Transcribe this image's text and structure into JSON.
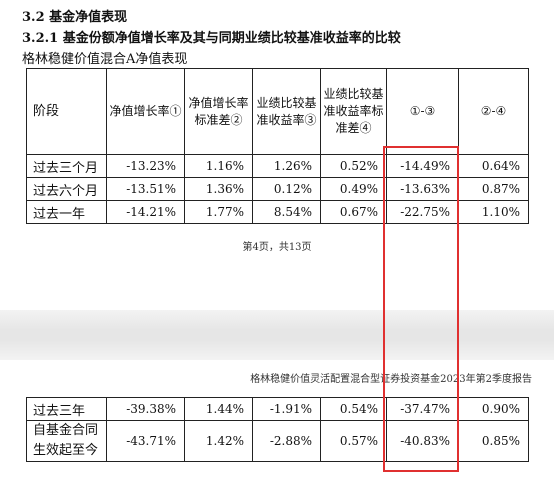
{
  "section": {
    "heading": "3.2 基金净值表现",
    "subheading": "3.2.1 基金份额净值增长率及其与同期业绩比较基准收益率的比较",
    "table_caption": "格林稳健价值混合A净值表现"
  },
  "table": {
    "headers": {
      "stage": "阶段",
      "nav_growth": "净值增长率①",
      "nav_std": "净值增长率标准差②",
      "bench_return": "业绩比较基准收益率③",
      "bench_std": "业绩比较基准收益率标准差④",
      "diff_1_3": "①-③",
      "diff_2_4": "②-④"
    },
    "rows_page1": [
      [
        "过去三个月",
        "-13.23%",
        "1.16%",
        "1.26%",
        "0.52%",
        "-14.49%",
        "0.64%"
      ],
      [
        "过去六个月",
        "-13.51%",
        "1.36%",
        "0.12%",
        "0.49%",
        "-13.63%",
        "0.87%"
      ],
      [
        "过去一年",
        "-14.21%",
        "1.77%",
        "8.54%",
        "0.67%",
        "-22.75%",
        "1.10%"
      ]
    ],
    "rows_page2": [
      [
        "过去三年",
        "-39.38%",
        "1.44%",
        "-1.91%",
        "0.54%",
        "-37.47%",
        "0.90%"
      ],
      [
        "自基金合同生效起至今",
        "-43.71%",
        "1.42%",
        "-2.88%",
        "0.57%",
        "-40.83%",
        "0.85%"
      ]
    ]
  },
  "footer": {
    "page_number": "第4页，共13页"
  },
  "running_head": "格林稳健价值灵活配置混合型证券投资基金2023年第2季度报告",
  "colors": {
    "highlight": "#e03030"
  }
}
